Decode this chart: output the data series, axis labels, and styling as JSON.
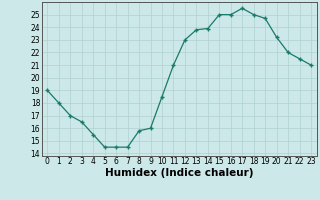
{
  "x": [
    0,
    1,
    2,
    3,
    4,
    5,
    6,
    7,
    8,
    9,
    10,
    11,
    12,
    13,
    14,
    15,
    16,
    17,
    18,
    19,
    20,
    21,
    22,
    23
  ],
  "y": [
    19,
    18,
    17,
    16.5,
    15.5,
    14.5,
    14.5,
    14.5,
    15.8,
    16,
    18.5,
    21,
    23,
    23.8,
    23.9,
    25,
    25,
    25.5,
    25,
    24.7,
    23.2,
    22,
    21.5,
    21
  ],
  "xlabel": "Humidex (Indice chaleur)",
  "xlim": [
    -0.5,
    23.5
  ],
  "ylim": [
    13.8,
    26.0
  ],
  "yticks": [
    14,
    15,
    16,
    17,
    18,
    19,
    20,
    21,
    22,
    23,
    24,
    25
  ],
  "xticks": [
    0,
    1,
    2,
    3,
    4,
    5,
    6,
    7,
    8,
    9,
    10,
    11,
    12,
    13,
    14,
    15,
    16,
    17,
    18,
    19,
    20,
    21,
    22,
    23
  ],
  "line_color": "#1a7a6a",
  "marker_color": "#1a7a6a",
  "bg_color": "#cce8e8",
  "grid_color": "#b0d0d0",
  "tick_label_fontsize": 5.5,
  "xlabel_fontsize": 7.5,
  "spine_color": "#555555"
}
